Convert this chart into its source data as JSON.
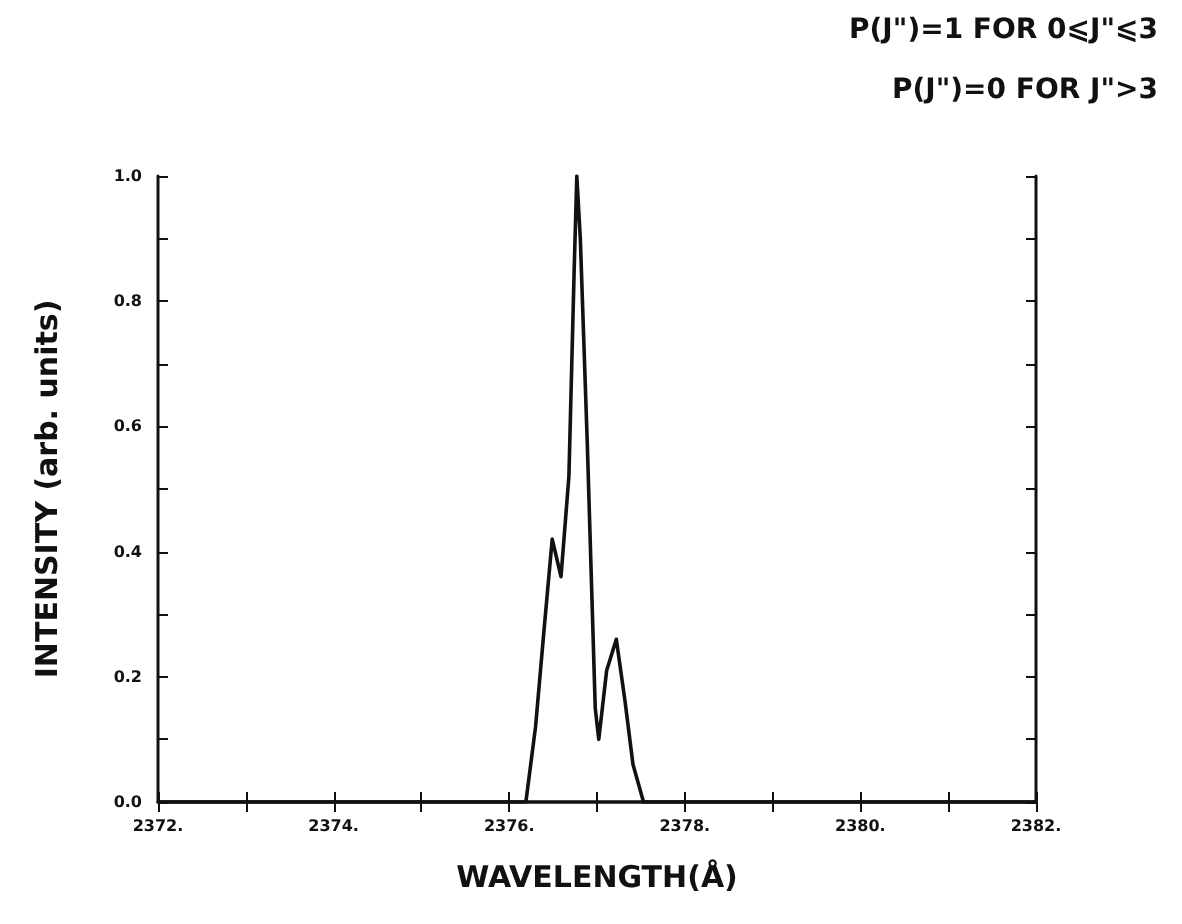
{
  "chart_data": {
    "type": "line",
    "xlabel": "WAVELENGTH(Å)",
    "ylabel": "INTENSITY (arb. units)",
    "annotations": [
      "P(J\")=1 FOR 0⩽J\"⩽3",
      "P(J\")=0 FOR J\">3"
    ],
    "x": [
      2372,
      2376.19,
      2376.3,
      2376.4,
      2376.49,
      2376.59,
      2376.68,
      2376.74,
      2376.77,
      2376.81,
      2376.89,
      2376.98,
      2377.02,
      2377.11,
      2377.22,
      2377.32,
      2377.41,
      2377.53,
      2382
    ],
    "values": [
      0,
      0,
      0.12,
      0.28,
      0.42,
      0.36,
      0.52,
      0.85,
      1.0,
      0.9,
      0.57,
      0.15,
      0.1,
      0.21,
      0.26,
      0.16,
      0.06,
      0,
      0
    ],
    "color": "#111111",
    "line_style": "solid",
    "marker": "none",
    "xlim": [
      2372,
      2382
    ],
    "xticks": [
      {
        "value": 2372,
        "label": "2372."
      },
      {
        "value": 2373,
        "label": null
      },
      {
        "value": 2374,
        "label": "2374."
      },
      {
        "value": 2375,
        "label": null
      },
      {
        "value": 2376,
        "label": "2376."
      },
      {
        "value": 2377,
        "label": null
      },
      {
        "value": 2378,
        "label": "2378."
      },
      {
        "value": 2379,
        "label": null
      },
      {
        "value": 2380,
        "label": "2380."
      },
      {
        "value": 2381,
        "label": null
      },
      {
        "value": 2382,
        "label": "2382."
      }
    ],
    "ylim": [
      0,
      1
    ],
    "yticks": [
      {
        "value": 0,
        "label": "0.0"
      },
      {
        "value": 0.1,
        "label": null
      },
      {
        "value": 0.2,
        "label": "0.2"
      },
      {
        "value": 0.3,
        "label": null
      },
      {
        "value": 0.4,
        "label": "0.4"
      },
      {
        "value": 0.5,
        "label": null
      },
      {
        "value": 0.6,
        "label": "0.6"
      },
      {
        "value": 0.7,
        "label": null
      },
      {
        "value": 0.8,
        "label": "0.8"
      },
      {
        "value": 0.9,
        "label": null
      },
      {
        "value": 1,
        "label": "1.0"
      }
    ]
  }
}
